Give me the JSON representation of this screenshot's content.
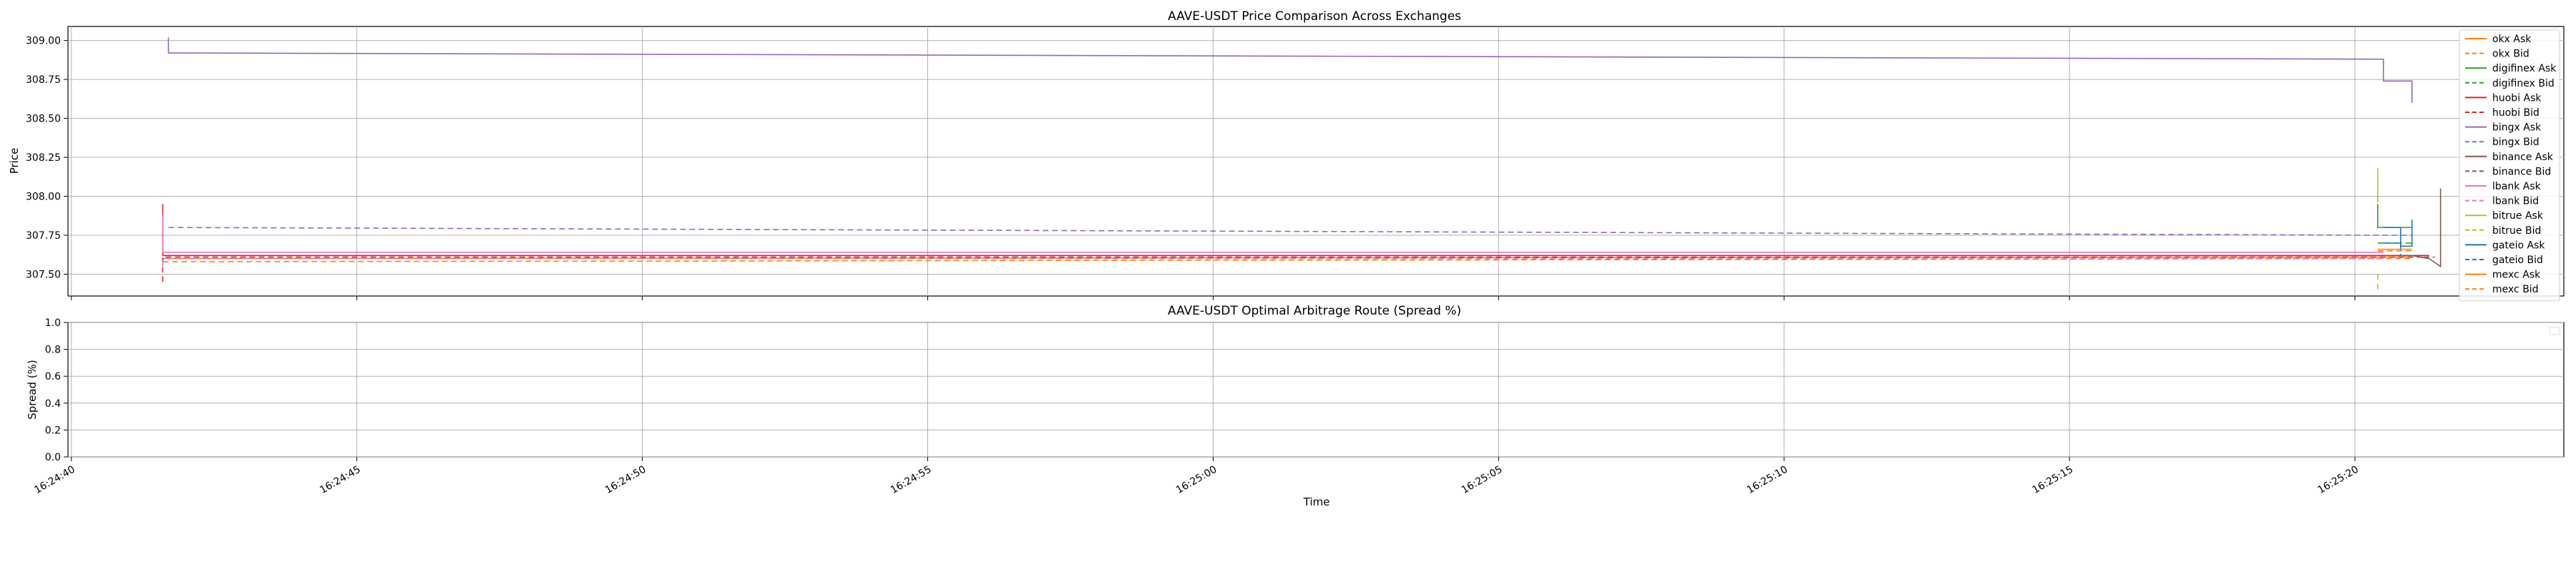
{
  "chart_data": [
    {
      "type": "line",
      "title": "AAVE-USDT Price Comparison Across Exchanges",
      "xlabel": "",
      "ylabel": "Price",
      "ylim": [
        307.36,
        309.09
      ],
      "yticks": [
        "307.50",
        "307.75",
        "308.00",
        "308.25",
        "308.50",
        "308.75",
        "309.00"
      ],
      "grid": true,
      "legend": "right",
      "series": [
        {
          "name": "okx Ask",
          "color": "#ff7f0e",
          "dash": false,
          "points": [
            [
              "16:24:41.6",
              307.6
            ],
            [
              "16:25:21.0",
              307.61
            ]
          ]
        },
        {
          "name": "okx Bid",
          "color": "#ff7f0e",
          "dash": true,
          "points": [
            [
              "16:24:41.6",
              307.58
            ],
            [
              "16:25:21.0",
              307.6
            ]
          ]
        },
        {
          "name": "digifinex Ask",
          "color": "#2ca02c",
          "dash": false,
          "points": [
            [
              "16:25:20.4",
              307.95
            ],
            [
              "16:25:20.4",
              307.8
            ],
            [
              "16:25:21.0",
              307.8
            ]
          ]
        },
        {
          "name": "digifinex Bid",
          "color": "#2ca02c",
          "dash": true,
          "points": [
            [
              "16:25:20.4",
              307.7
            ],
            [
              "16:25:21.0",
              307.7
            ]
          ]
        },
        {
          "name": "huobi Ask",
          "color": "#d62728",
          "dash": false,
          "points": [
            [
              "16:24:41.6",
              307.95
            ],
            [
              "16:24:41.6",
              307.62
            ],
            [
              "16:25:21.3",
              307.62
            ]
          ]
        },
        {
          "name": "huobi Bid",
          "color": "#d62728",
          "dash": true,
          "points": [
            [
              "16:24:41.6",
              307.45
            ],
            [
              "16:24:41.6",
              307.61
            ],
            [
              "16:25:21.3",
              307.61
            ]
          ]
        },
        {
          "name": "bingx Ask",
          "color": "#9467bd",
          "dash": false,
          "points": [
            [
              "16:24:41.7",
              309.02
            ],
            [
              "16:24:41.7",
              308.92
            ],
            [
              "16:25:20.5",
              308.88
            ],
            [
              "16:25:20.5",
              308.74
            ],
            [
              "16:25:21.0",
              308.74
            ],
            [
              "16:25:21.0",
              308.6
            ]
          ]
        },
        {
          "name": "bingx Bid",
          "color": "#9467bd",
          "dash": true,
          "points": [
            [
              "16:24:41.7",
              307.8
            ],
            [
              "16:25:20.6",
              307.75
            ],
            [
              "16:25:21.0",
              307.75
            ]
          ]
        },
        {
          "name": "binance Ask",
          "color": "#8c564b",
          "dash": false,
          "points": [
            [
              "16:25:21.0",
              307.62
            ],
            [
              "16:25:21.3",
              307.6
            ],
            [
              "16:25:21.5",
              307.55
            ],
            [
              "16:25:21.5",
              308.05
            ],
            [
              "16:25:21.5",
              307.92
            ]
          ]
        },
        {
          "name": "binance Bid",
          "color": "#8c564b",
          "dash": true,
          "points": [
            [
              "16:25:21.2",
              307.61
            ],
            [
              "16:25:21.4",
              307.61
            ]
          ]
        },
        {
          "name": "lbank Ask",
          "color": "#e377c2",
          "dash": false,
          "points": [
            [
              "16:24:41.6",
              307.88
            ],
            [
              "16:24:41.6",
              307.64
            ],
            [
              "16:25:20.5",
              307.64
            ]
          ]
        },
        {
          "name": "lbank Bid",
          "color": "#e377c2",
          "dash": true,
          "points": [
            [
              "16:24:41.6",
              307.55
            ],
            [
              "16:24:41.6",
              307.6
            ],
            [
              "16:25:20.5",
              307.6
            ]
          ]
        },
        {
          "name": "bitrue Ask",
          "color": "#bcbd22",
          "dash": false,
          "points": [
            [
              "16:25:20.4",
              308.18
            ],
            [
              "16:25:20.4",
              307.96
            ]
          ]
        },
        {
          "name": "bitrue Bid",
          "color": "#bcbd22",
          "dash": true,
          "points": [
            [
              "16:25:20.4",
              307.5
            ],
            [
              "16:25:20.4",
              307.4
            ]
          ]
        },
        {
          "name": "gateio Ask",
          "color": "#1f77b4",
          "dash": false,
          "points": [
            [
              "16:25:20.5",
              307.8
            ],
            [
              "16:25:20.8",
              307.8
            ],
            [
              "16:25:20.8",
              307.68
            ],
            [
              "16:25:21.0",
              307.68
            ],
            [
              "16:25:21.0",
              307.85
            ]
          ]
        },
        {
          "name": "gateio Bid",
          "color": "#1f77b4",
          "dash": true,
          "points": [
            [
              "16:25:20.5",
              307.7
            ],
            [
              "16:25:20.8",
              307.7
            ],
            [
              "16:25:20.8",
              307.62
            ],
            [
              "16:25:21.0",
              307.62
            ]
          ]
        },
        {
          "name": "mexc Ask",
          "color": "#ff7f0e",
          "dash": false,
          "points": [
            [
              "16:25:20.4",
              307.66
            ],
            [
              "16:25:21.0",
              307.66
            ]
          ]
        },
        {
          "name": "mexc Bid",
          "color": "#ff7f0e",
          "dash": true,
          "points": [
            [
              "16:25:20.4",
              307.65
            ],
            [
              "16:25:21.0",
              307.65
            ]
          ]
        }
      ]
    },
    {
      "type": "line",
      "title": "AAVE-USDT Optimal Arbitrage Route (Spread %)",
      "xlabel": "Time",
      "ylabel": "Spread (%)",
      "ylim": [
        0.0,
        1.0
      ],
      "yticks": [
        "0.0",
        "0.2",
        "0.4",
        "0.6",
        "0.8",
        "1.0"
      ],
      "xticks": [
        "16:24:40",
        "16:24:45",
        "16:24:50",
        "16:24:55",
        "16:25:00",
        "16:25:05",
        "16:25:10",
        "16:25:15",
        "16:25:20"
      ],
      "xlim": [
        "16:24:39.94",
        "16:25:23.66"
      ],
      "grid": true,
      "series": []
    }
  ]
}
